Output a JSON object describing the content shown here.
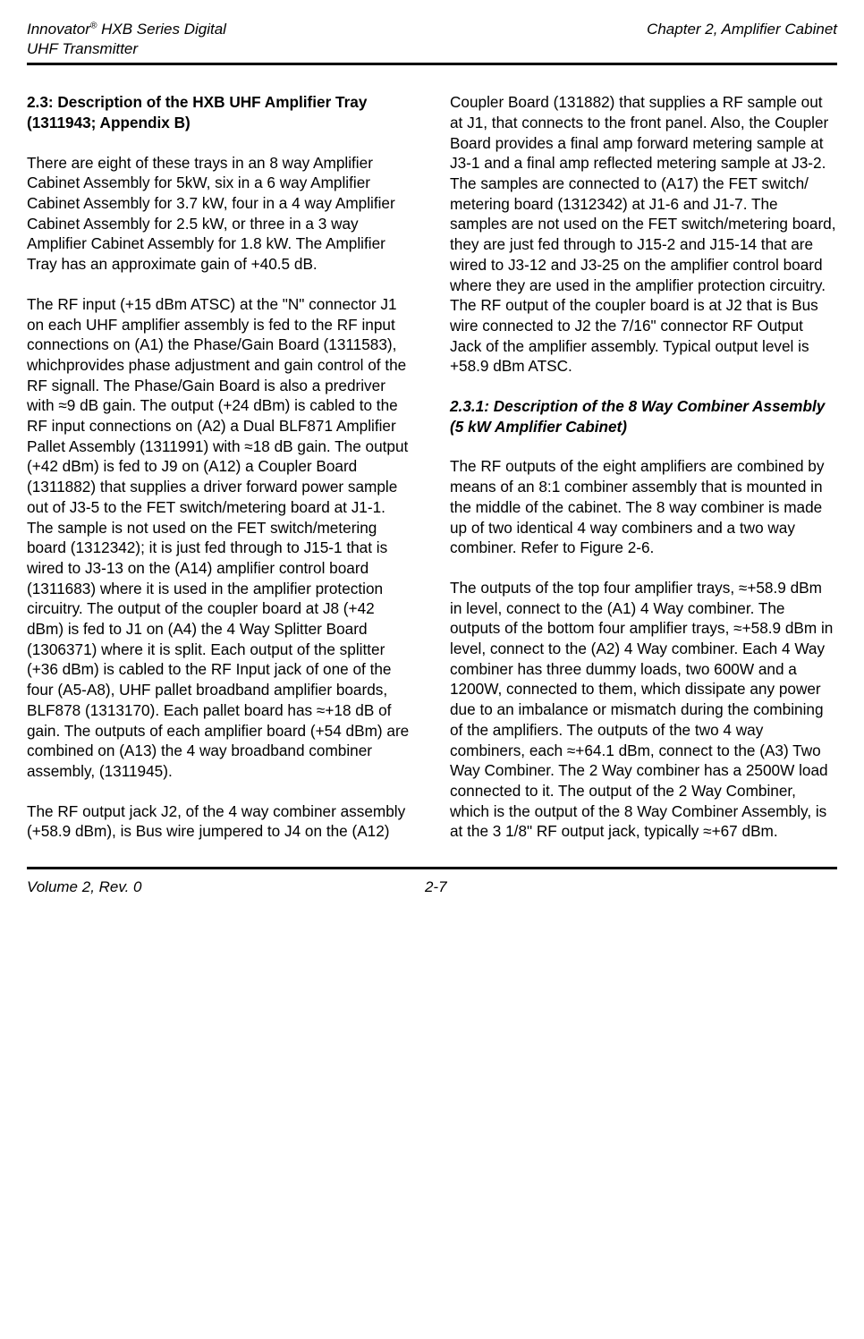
{
  "header": {
    "left_line1": "Innovator",
    "left_reg": "®",
    "left_line1b": " HXB Series Digital",
    "left_line2": "UHF Transmitter",
    "right_line1": "Chapter 2, Amplifier Cabinet"
  },
  "footer": {
    "left": "Volume 2, Rev. 0",
    "center": "2-7"
  },
  "col1": {
    "title": "2.3: Description of the HXB UHF Amplifier Tray",
    "title_sub": " (1311943; Appendix B)",
    "p1": "There are eight of these trays in an 8 way Amplifier Cabinet Assembly for 5kW, six in a 6 way Amplifier Cabinet Assembly for 3.7 kW, four in a 4 way Amplifier Cabinet Assembly for 2.5 kW, or three in a 3 way Amplifier Cabinet Assembly for 1.8 kW.  The Amplifier Tray has an approximate gain of +40.5 dB.",
    "p2": "The RF input (+15 dBm ATSC) at the \"N\" connector J1 on each UHF amplifier assembly is fed to the RF input connections on (A1) the Phase/Gain Board (1311583), whichprovides phase adjustment and gain control of the RF signall.  The Phase/Gain Board is also a predriver with ≈9 dB gain.  The output (+24 dBm) is cabled to the RF input connections on (A2) a Dual BLF871 Amplifier Pallet Assembly (1311991) with ≈18 dB gain.  The output (+42 dBm) is fed to J9 on (A12) a Coupler Board (1311882) that supplies a driver forward power sample out of J3-5 to the FET switch/metering board at J1-1.  The sample is not used on the FET switch/metering board (1312342); it is just fed through to J15-1 that is wired to J3-13 on the (A14) amplifier control board (1311683) where it is used in the amplifier protection circuitry. The output of the coupler board at J8 (+42 dBm) is fed to J1 on (A4) the 4 Way Splitter Board (1306371) where it is split.  Each output of the splitter (+36 dBm) is cabled to the RF Input jack of one of the four (A5-A8), UHF pallet broadband amplifier boards, BLF878 (1313170).  Each pallet board has ≈+18 dB of gain.  The outputs of each amplifier board (+54 dBm) are combined on (A13) the 4 way broadband combiner assembly, (1311945).",
    "p3": "The RF output jack J2, of the 4 way combiner assembly (+58.9 dBm), is Bus wire jumpered to J4 on the (A12)"
  },
  "col2": {
    "p1": "Coupler Board (131882) that supplies a RF sample out at J1, that connects to the front panel.  Also, the Coupler Board provides a final amp forward metering sample at J3-1 and a final amp reflected metering sample at J3-2.   The samples are connected to (A17) the FET switch/ metering board (1312342) at J1-6 and J1-7.  The samples are not used on the FET switch/metering board, they are just fed through to J15-2 and J15-14 that are wired to J3-12 and J3-25 on the amplifier control board where they are used in the amplifier protection circuitry.  The RF output of the coupler board is at J2 that is Bus wire connected to J2 the 7/16\" connector RF Output Jack of the amplifier assembly.  Typical output level is +58.9 dBm ATSC.",
    "subtitle": "2.3.1: Description of the 8 Way Combiner Assembly (5 kW Amplifier Cabinet)",
    "p2": "The RF outputs of the eight amplifiers are combined by means of an 8:1 combiner assembly that is mounted in the middle of the cabinet.  The 8 way combiner is made up of two identical 4 way combiners and a two way combiner.  Refer to Figure 2-6.",
    "p3": "The outputs of the top four amplifier trays, ≈+58.9 dBm in level, connect to the (A1) 4 Way combiner.  The outputs of the bottom four amplifier trays, ≈+58.9 dBm in level, connect to the (A2) 4 Way combiner.  Each 4 Way combiner has three dummy loads, two 600W and a 1200W, connected to them, which dissipate any power due to an imbalance or mismatch during the combining of the amplifiers.  The outputs of the two 4 way combiners, each ≈+64.1 dBm, connect to the (A3) Two Way Combiner.  The 2 Way combiner has a 2500W load connected to it.  The output of the 2 Way Combiner, which is the output of the 8 Way Combiner Assembly, is at the 3 1/8\" RF output jack, typically ≈+67 dBm."
  }
}
